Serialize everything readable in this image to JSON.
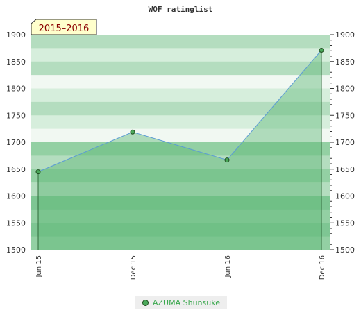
{
  "chart_data": {
    "type": "area",
    "title": "WOF ratinglist",
    "period_label": "2015–2016",
    "categories": [
      "Jun 15",
      "Dec 15",
      "Jun 16",
      "Dec 16"
    ],
    "series": [
      {
        "name": "AZUMA Shunsuke",
        "values": [
          1645,
          1719,
          1667,
          1871
        ]
      }
    ],
    "ylim": [
      1500,
      1900
    ],
    "yticks": [
      1500,
      1550,
      1600,
      1650,
      1700,
      1750,
      1800,
      1850,
      1900
    ],
    "grid": "horizontal bands",
    "legend_position": "bottom"
  },
  "colors": {
    "series_fill": "#5fb878",
    "series_line": "#5b9bd5",
    "marker": "#4aa85a",
    "legend_text": "#3aa84d",
    "badge_bg": "#ffffcc",
    "badge_text": "#8b0000"
  }
}
